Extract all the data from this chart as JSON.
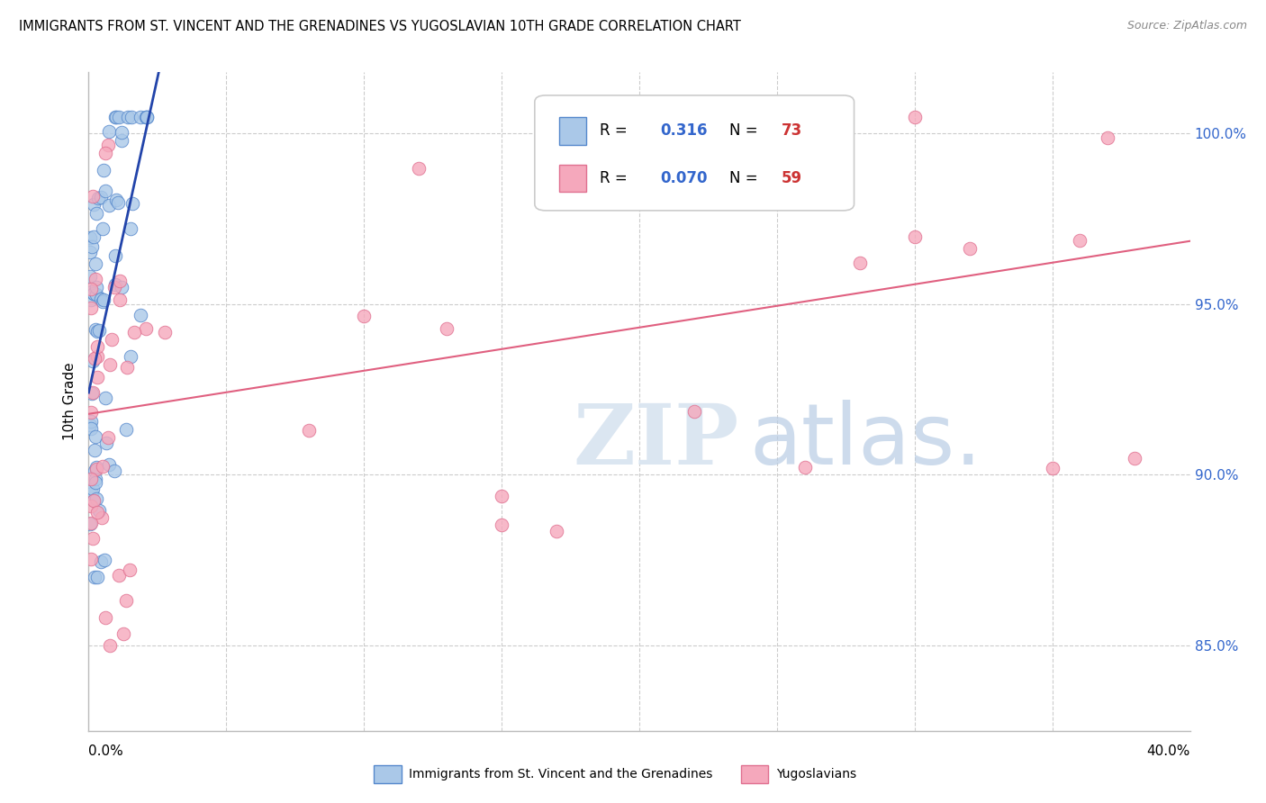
{
  "title": "IMMIGRANTS FROM ST. VINCENT AND THE GRENADINES VS YUGOSLAVIAN 10TH GRADE CORRELATION CHART",
  "source": "Source: ZipAtlas.com",
  "ylabel": "10th Grade",
  "yaxis_labels": [
    "85.0%",
    "90.0%",
    "95.0%",
    "100.0%"
  ],
  "yaxis_values": [
    0.85,
    0.9,
    0.95,
    1.0
  ],
  "xmin": 0.0,
  "xmax": 0.4,
  "ymin": 0.825,
  "ymax": 1.018,
  "legend1_label": "Immigrants from St. Vincent and the Grenadines",
  "legend2_label": "Yugoslavians",
  "r1": "0.316",
  "n1": "73",
  "r2": "0.070",
  "n2": "59",
  "color_blue": "#aac8e8",
  "color_pink": "#f5a8bc",
  "edge_blue": "#5588cc",
  "edge_pink": "#e07090",
  "trendline_blue": "#2244aa",
  "trendline_pink": "#e06080",
  "grid_color": "#cccccc",
  "spine_color": "#bbbbbb",
  "right_label_color": "#3366cc",
  "watermark_zip_color": "#d8e4f0",
  "watermark_atlas_color": "#b8cce4"
}
